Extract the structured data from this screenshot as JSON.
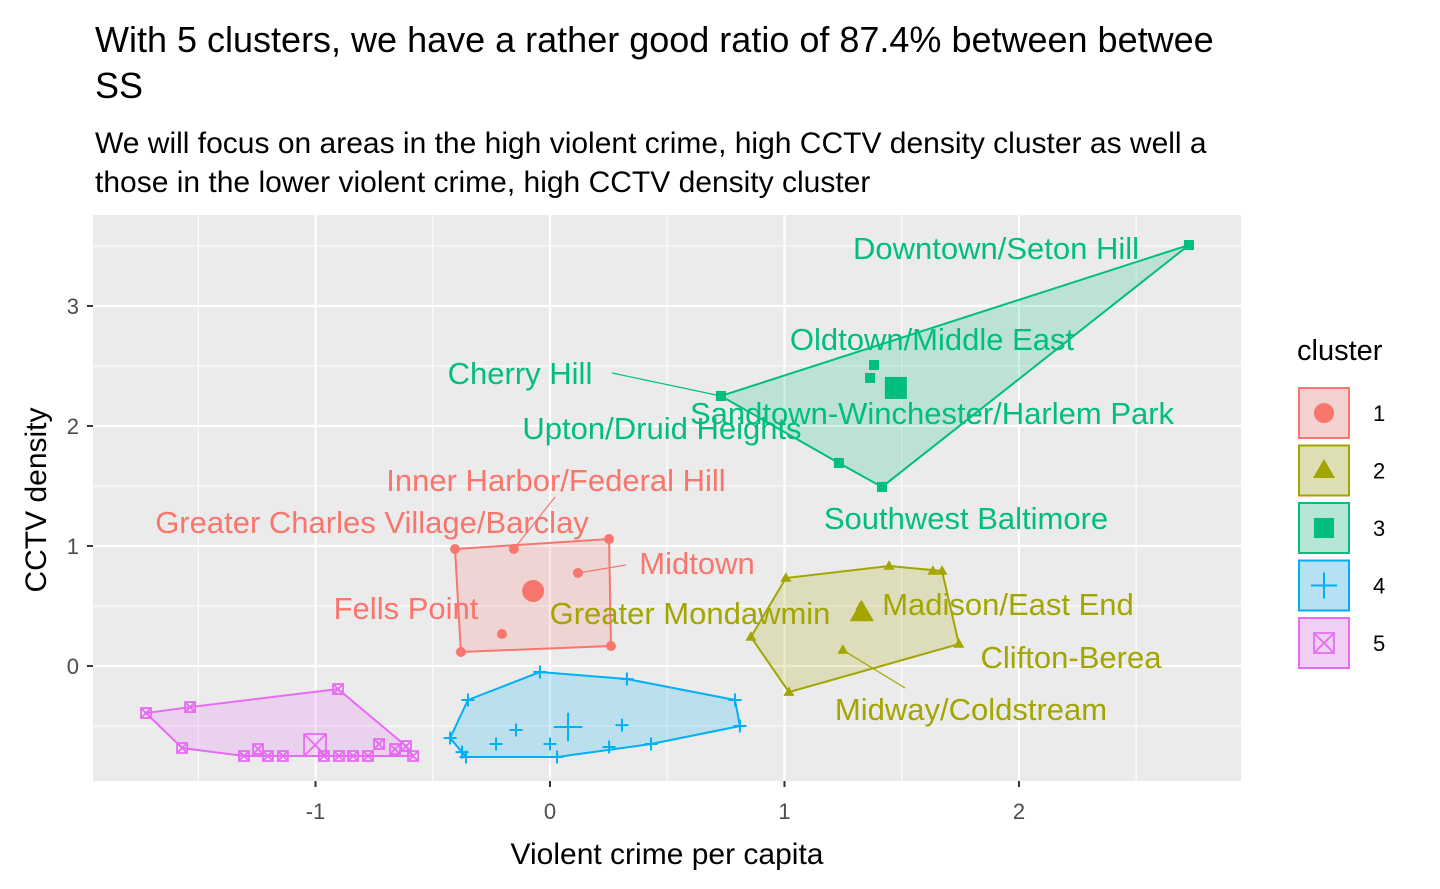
{
  "chart_data": {
    "type": "cluster-scatter",
    "title": [
      "With 5 clusters, we have a rather good ratio of 87.4% between betwee",
      "SS"
    ],
    "subtitle": [
      "We will focus on areas in the high violent crime, high CCTV density cluster as well a",
      "those in the lower violent crime, high CCTV density cluster"
    ],
    "x_label": "Violent crime per capita",
    "y_label": "CCTV density",
    "legend_title": "cluster",
    "xlim": [
      -1.949,
      2.947
    ],
    "ylim": [
      -0.958,
      3.758
    ],
    "xticks": [
      -1,
      0,
      1,
      2
    ],
    "yticks": [
      0,
      1,
      2,
      3
    ],
    "grid": true,
    "series": [
      {
        "name": "1",
        "color": "#F8766D",
        "shape": "circle",
        "x": [
          -0.405,
          -0.154,
          0.252,
          0.119,
          -0.205,
          -0.38,
          0.26
        ],
        "y": [
          0.975,
          0.975,
          1.058,
          0.775,
          0.267,
          0.117,
          0.167
        ],
        "labels": [
          "Greater Charles Village/Barclay",
          "Inner Harbor/Federal Hill",
          null,
          "Midtown",
          "Fells Point",
          null,
          null
        ],
        "center_x": -0.072,
        "center_y": 0.625
      },
      {
        "name": "2",
        "color": "#A3A500",
        "shape": "triangle",
        "x": [
          1.006,
          1.446,
          1.633,
          1.672,
          1.744,
          0.857,
          1.019,
          1.249,
          1.326
        ],
        "y": [
          0.733,
          0.833,
          0.792,
          0.792,
          0.183,
          0.242,
          -0.217,
          0.133,
          0.5
        ],
        "labels": [
          null,
          null,
          null,
          null,
          "Clifton-Berea",
          "Greater Mondawmin",
          null,
          "Midway/Coldstream",
          "Madison/East End"
        ],
        "center_x": 1.33,
        "center_y": 0.442
      },
      {
        "name": "3",
        "color": "#00BF7D",
        "shape": "square",
        "x": [
          2.725,
          1.382,
          1.365,
          0.729,
          1.232,
          1.416
        ],
        "y": [
          3.508,
          2.508,
          2.4,
          2.25,
          1.692,
          1.492
        ],
        "labels": [
          "Downtown/Seton Hill",
          "Oldtown/Middle East",
          "Sandtown-Winchester/Harlem Park",
          "Cherry Hill",
          "Upton/Druid Heights",
          "Southwest Baltimore"
        ],
        "center_x": 1.475,
        "center_y": 2.317
      },
      {
        "name": "4",
        "color": "#00B0F6",
        "shape": "plus",
        "x": [
          -0.043,
          0.328,
          0.789,
          0.81,
          0.307,
          0.431,
          0.252,
          0.03,
          0.0,
          -0.145,
          -0.23,
          -0.358,
          -0.375,
          -0.426,
          -0.35
        ],
        "y": [
          -0.05,
          -0.108,
          -0.283,
          -0.5,
          -0.492,
          -0.65,
          -0.675,
          -0.758,
          -0.65,
          -0.533,
          -0.65,
          -0.758,
          -0.717,
          -0.6,
          -0.283
        ],
        "center_x": 0.077,
        "center_y": -0.508
      },
      {
        "name": "5",
        "color": "#E76BF3",
        "shape": "squarex",
        "x": [
          -1.723,
          -1.535,
          -0.904,
          -1.569,
          -1.305,
          -1.245,
          -1.203,
          -1.139,
          -0.964,
          -0.9,
          -0.84,
          -0.776,
          -0.729,
          -0.661,
          -0.584,
          -0.614
        ],
        "y": [
          -0.392,
          -0.342,
          -0.192,
          -0.683,
          -0.75,
          -0.692,
          -0.75,
          -0.75,
          -0.75,
          -0.75,
          -0.75,
          -0.75,
          -0.65,
          -0.692,
          -0.75,
          -0.667
        ],
        "center_x": -1.002,
        "center_y": -0.658
      }
    ]
  }
}
